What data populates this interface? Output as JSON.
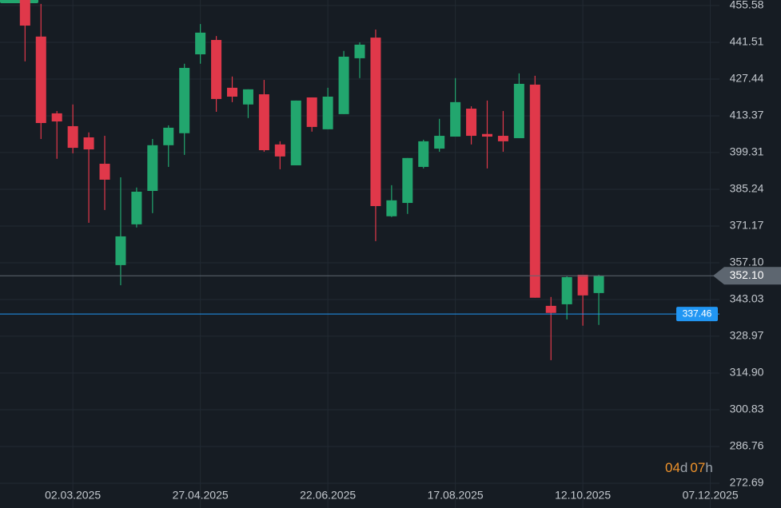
{
  "chart_data": {
    "type": "candlestick",
    "x": [
      "2025-02-09",
      "2025-02-16",
      "2025-02-23",
      "2025-03-02",
      "2025-03-09",
      "2025-03-16",
      "2025-03-23",
      "2025-03-30",
      "2025-04-06",
      "2025-04-13",
      "2025-04-20",
      "2025-04-27",
      "2025-05-04",
      "2025-05-11",
      "2025-05-18",
      "2025-05-25",
      "2025-06-01",
      "2025-06-08",
      "2025-06-15",
      "2025-06-22",
      "2025-06-29",
      "2025-07-06",
      "2025-07-13",
      "2025-07-20",
      "2025-07-27",
      "2025-08-03",
      "2025-08-10",
      "2025-08-17",
      "2025-08-24",
      "2025-08-31",
      "2025-09-07",
      "2025-09-14",
      "2025-09-21",
      "2025-09-28",
      "2025-10-05",
      "2025-10-12",
      "2025-10-19"
    ],
    "open": [
      457.7,
      443.7,
      414.3,
      409.4,
      405.1,
      395.0,
      356.2,
      371.8,
      384.6,
      402.1,
      406.7,
      436.9,
      442.4,
      424.1,
      417.7,
      421.6,
      402.4,
      394.4,
      420.4,
      408.2,
      414.0,
      435.4,
      443.3,
      374.9,
      380.0,
      393.8,
      400.8,
      405.4,
      416.1,
      406.4,
      405.7,
      404.8,
      425.3,
      340.6,
      341.2,
      352.5,
      345.5
    ],
    "high": [
      460.0,
      456.2,
      415.2,
      417.7,
      407.0,
      405.7,
      389.8,
      385.9,
      404.5,
      409.7,
      433.3,
      448.5,
      443.9,
      428.4,
      423.5,
      427.1,
      403.6,
      419.2,
      420.4,
      424.1,
      438.2,
      441.5,
      446.4,
      386.8,
      397.2,
      404.2,
      412.2,
      427.8,
      417.0,
      419.2,
      415.2,
      429.6,
      428.7,
      344.0,
      351.9,
      352.5,
      352.5
    ],
    "low": [
      434.2,
      404.5,
      396.9,
      399.0,
      372.4,
      377.3,
      348.5,
      370.6,
      376.1,
      393.8,
      398.4,
      433.3,
      414.9,
      418.6,
      412.5,
      399.6,
      392.9,
      394.4,
      407.3,
      408.2,
      414.0,
      427.8,
      365.4,
      374.6,
      375.8,
      393.2,
      399.6,
      405.4,
      402.4,
      393.2,
      399.6,
      404.8,
      343.7,
      319.8,
      335.4,
      333.0,
      333.3
    ],
    "close": [
      447.9,
      410.6,
      411.2,
      401.1,
      400.5,
      388.9,
      367.2,
      384.3,
      402.1,
      408.8,
      431.7,
      445.2,
      419.8,
      420.7,
      423.5,
      400.2,
      397.8,
      419.2,
      409.1,
      420.7,
      436.0,
      440.6,
      378.8,
      381.0,
      397.2,
      403.6,
      405.7,
      418.6,
      405.7,
      405.4,
      403.6,
      425.6,
      343.7,
      337.9,
      351.6,
      344.6,
      352.1
    ],
    "up_color": "#22a66e",
    "down_color": "#e0384a",
    "xlim": [
      "2025-01-29",
      "2025-12-11"
    ],
    "xticks": [
      {
        "value": "2025-03-02",
        "label": "02.03.2025"
      },
      {
        "value": "2025-04-27",
        "label": "27.04.2025"
      },
      {
        "value": "2025-06-22",
        "label": "22.06.2025"
      },
      {
        "value": "2025-08-17",
        "label": "17.08.2025"
      },
      {
        "value": "2025-10-12",
        "label": "12.10.2025"
      },
      {
        "value": "2025-12-07",
        "label": "07.12.2025"
      }
    ],
    "ylim": [
      263.2,
      457.7
    ],
    "yticks": [
      455.58,
      441.51,
      427.44,
      413.37,
      399.31,
      385.24,
      371.17,
      {
        "value": 357.1,
        "label": "357.10"
      },
      343.03,
      328.97,
      {
        "value": 314.9,
        "label": "314.90"
      },
      300.83,
      286.76,
      272.69
    ],
    "grid": true,
    "price_line": {
      "value": 352.1,
      "label": "352.10",
      "color": "#5d6670"
    },
    "alert_line": {
      "value": 337.46,
      "label": "337.46",
      "color": "#2196f3"
    },
    "countdown": {
      "days": "04",
      "day_unit": "d",
      "hours": "07",
      "hour_unit": "h"
    }
  }
}
